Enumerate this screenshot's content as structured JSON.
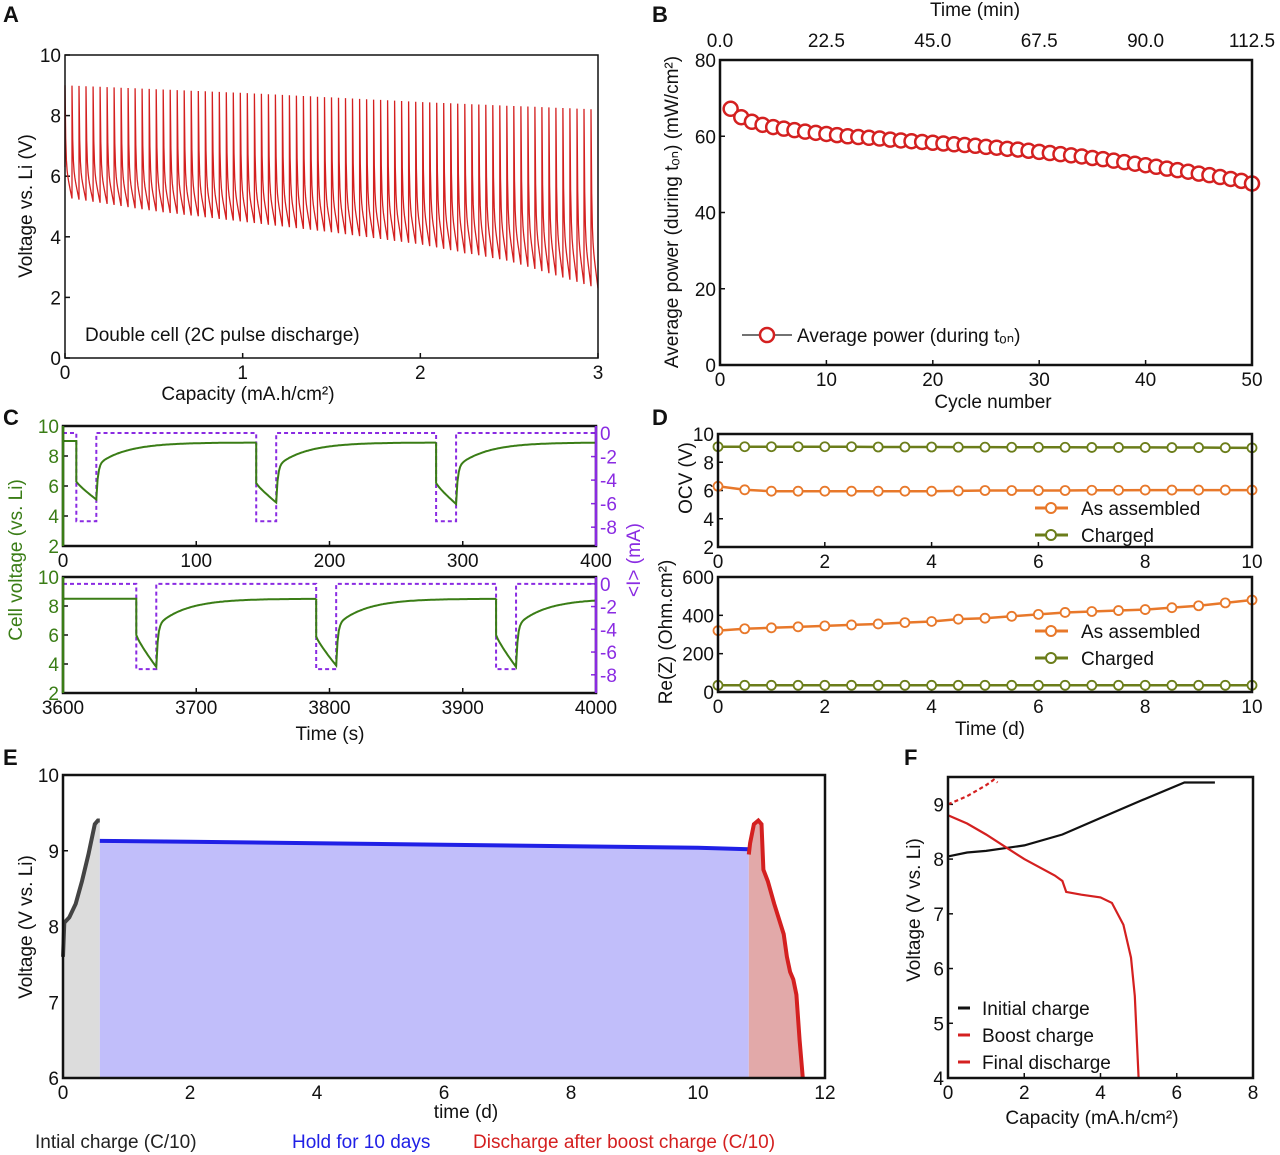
{
  "figure": {
    "panel_labels": [
      "A",
      "B",
      "C",
      "D",
      "E",
      "F"
    ]
  },
  "colors": {
    "red": "#d42020",
    "green": "#3a7d16",
    "purple": "#8a2be2",
    "orange": "#e8782a",
    "olive": "#6b7d1a",
    "blue": "#2020e6",
    "blue_fill": "#c1befa",
    "gray_fill": "#dcdcdc",
    "dark": "#444444",
    "red_fill": "#e2a9a9"
  },
  "chart_data": [
    {
      "id": "A",
      "type": "line",
      "xlabel": "Capacity (mA.h/cm²)",
      "ylabel": "Voltage vs. Li (V)",
      "xlim": [
        0,
        3
      ],
      "ylim": [
        0,
        10
      ],
      "xticks": [
        0,
        1,
        2,
        3
      ],
      "yticks": [
        0,
        2,
        4,
        6,
        8,
        10
      ],
      "annotation": "Double cell (2C pulse discharge)",
      "pulse_train": {
        "pulses": 76,
        "first_trough": 6.3,
        "peak_voltage": [
          [
            0,
            9.0
          ],
          [
            1,
            8.75
          ],
          [
            2,
            8.45
          ],
          [
            3,
            8.2
          ]
        ],
        "min_voltage": [
          [
            0,
            5.3
          ],
          [
            0.5,
            4.85
          ],
          [
            1,
            4.5
          ],
          [
            1.5,
            4.15
          ],
          [
            2,
            3.75
          ],
          [
            2.5,
            3.2
          ],
          [
            3,
            2.3
          ]
        ]
      }
    },
    {
      "id": "B",
      "type": "scatter",
      "xlabel": "Cycle number",
      "ylabel": "Average power (during tₒₙ) (mW/cm²)",
      "x2label": "Time (min)",
      "xlim": [
        0,
        50
      ],
      "ylim": [
        0,
        80
      ],
      "xticks": [
        0,
        10,
        20,
        30,
        40,
        50
      ],
      "yticks": [
        0,
        20,
        40,
        60,
        80
      ],
      "x2lim": [
        0,
        112.5
      ],
      "x2ticks": [
        "0.0",
        "22.5",
        "45.0",
        "67.5",
        "90.0",
        "112.5"
      ],
      "legend": "Average power (during tₒₙ)",
      "legend_position": "bottom-left",
      "series": [
        {
          "name": "Average power (during tₒₙ)",
          "x_start": 1,
          "values": [
            67.2,
            65.0,
            63.8,
            63.0,
            62.4,
            62.0,
            61.6,
            61.2,
            60.9,
            60.6,
            60.3,
            60.0,
            59.8,
            59.6,
            59.4,
            59.1,
            58.9,
            58.7,
            58.5,
            58.3,
            58.1,
            57.9,
            57.7,
            57.5,
            57.2,
            57.0,
            56.7,
            56.5,
            56.2,
            55.9,
            55.6,
            55.3,
            55.0,
            54.7,
            54.3,
            54.0,
            53.6,
            53.2,
            52.8,
            52.4,
            52.0,
            51.5,
            51.1,
            50.7,
            50.2,
            49.8,
            49.3,
            48.8,
            48.3,
            47.6
          ]
        }
      ]
    },
    {
      "id": "C1",
      "type": "line",
      "ylabel": "Cell voltage (vs. Li)",
      "y2label": "<I> (mA)",
      "xlim": [
        0,
        400
      ],
      "ylim": [
        2,
        10
      ],
      "xticks": [
        0,
        100,
        200,
        300,
        400
      ],
      "yticks": [
        2,
        4,
        6,
        8,
        10
      ],
      "y2lim": [
        -9.6,
        0.6
      ],
      "y2ticks": [
        0,
        -2,
        -4,
        -6,
        -8
      ],
      "rest_voltage": 8.9,
      "initial_voltage": 9.0,
      "current_on": -7.5,
      "current_off": 0,
      "pulses": [
        {
          "on": 10,
          "off": 25,
          "v_start": 6.3,
          "v_end": 5.1
        },
        {
          "on": 145,
          "off": 160,
          "v_start": 6.2,
          "v_end": 4.9
        },
        {
          "on": 280,
          "off": 295,
          "v_start": 6.2,
          "v_end": 4.8
        }
      ]
    },
    {
      "id": "C2",
      "type": "line",
      "xlabel": "Time (s)",
      "xlim": [
        3600,
        4000
      ],
      "ylim": [
        2,
        10
      ],
      "xticks": [
        3600,
        3700,
        3800,
        3900,
        4000
      ],
      "yticks": [
        2,
        4,
        6,
        8,
        10
      ],
      "y2lim": [
        -9.6,
        0.6
      ],
      "y2ticks": [
        0,
        -2,
        -4,
        -6,
        -8
      ],
      "rest_voltage": 8.5,
      "initial_voltage": 8.5,
      "current_on": -7.5,
      "current_off": 0,
      "pulses": [
        {
          "on": 3655,
          "off": 3670,
          "v_start": 6.0,
          "v_end": 3.8
        },
        {
          "on": 3790,
          "off": 3805,
          "v_start": 5.9,
          "v_end": 3.9
        },
        {
          "on": 3925,
          "off": 3940,
          "v_start": 6.0,
          "v_end": 3.8
        }
      ]
    },
    {
      "id": "D1",
      "type": "scatter",
      "ylabel": "OCV (V)",
      "xlim": [
        0,
        10
      ],
      "ylim": [
        2,
        10
      ],
      "xticks": [
        0,
        2,
        4,
        6,
        8,
        10
      ],
      "yticks": [
        2,
        4,
        6,
        8,
        10
      ],
      "legend_position": "bottom-right",
      "x_step": 0.5,
      "series": [
        {
          "name": "As assembled",
          "values": [
            6.3,
            6.05,
            5.95,
            5.95,
            5.95,
            5.95,
            5.95,
            5.95,
            5.95,
            5.97,
            6.0,
            6.0,
            6.0,
            6.0,
            6.02,
            6.02,
            6.03,
            6.03,
            6.03,
            6.03,
            6.03
          ]
        },
        {
          "name": "Charged",
          "values": [
            9.1,
            9.1,
            9.1,
            9.1,
            9.1,
            9.1,
            9.08,
            9.08,
            9.08,
            9.07,
            9.07,
            9.06,
            9.06,
            9.06,
            9.05,
            9.05,
            9.05,
            9.04,
            9.04,
            9.03,
            9.02
          ]
        }
      ]
    },
    {
      "id": "D2",
      "type": "scatter",
      "xlabel": "Time (d)",
      "ylabel": "Re(Z) (Ohm.cm²)",
      "xlim": [
        0,
        10
      ],
      "ylim": [
        0,
        600
      ],
      "xticks": [
        0,
        2,
        4,
        6,
        8,
        10
      ],
      "yticks": [
        0,
        200,
        400,
        600
      ],
      "legend_position": "center-right",
      "x_step": 0.5,
      "series": [
        {
          "name": "As assembled",
          "values": [
            320,
            330,
            335,
            340,
            345,
            350,
            355,
            362,
            368,
            380,
            385,
            395,
            405,
            415,
            420,
            425,
            430,
            440,
            450,
            465,
            480
          ]
        },
        {
          "name": "Charged",
          "values": [
            35,
            35,
            35,
            35,
            35,
            35,
            35,
            35,
            35,
            35,
            35,
            35,
            35,
            35,
            35,
            35,
            35,
            35,
            35,
            35,
            35
          ]
        }
      ]
    },
    {
      "id": "E",
      "type": "area",
      "xlabel": "time (d)",
      "ylabel": "Voltage (V vs. Li)",
      "xlim": [
        0,
        12
      ],
      "ylim": [
        6,
        10
      ],
      "xticks": [
        0,
        2,
        4,
        6,
        8,
        10,
        12
      ],
      "yticks": [
        6,
        7,
        8,
        9,
        10
      ],
      "series": [
        {
          "name": "Intial charge (C/10)",
          "points": [
            [
              0,
              7.6
            ],
            [
              0.02,
              8.05
            ],
            [
              0.1,
              8.12
            ],
            [
              0.2,
              8.3
            ],
            [
              0.3,
              8.6
            ],
            [
              0.4,
              8.95
            ],
            [
              0.5,
              9.35
            ],
            [
              0.55,
              9.4
            ],
            [
              0.58,
              9.4
            ]
          ]
        },
        {
          "name": "Hold for 10 days",
          "points": [
            [
              0.58,
              9.13
            ],
            [
              2,
              9.12
            ],
            [
              4,
              9.1
            ],
            [
              6,
              9.08
            ],
            [
              8,
              9.06
            ],
            [
              10,
              9.04
            ],
            [
              10.8,
              9.02
            ]
          ]
        },
        {
          "name": "Discharge after boost charge (C/10)",
          "points": [
            [
              10.8,
              8.95
            ],
            [
              10.82,
              9.1
            ],
            [
              10.88,
              9.35
            ],
            [
              10.95,
              9.4
            ],
            [
              11.0,
              9.35
            ],
            [
              11.03,
              8.75
            ],
            [
              11.1,
              8.6
            ],
            [
              11.2,
              8.3
            ],
            [
              11.35,
              7.9
            ],
            [
              11.4,
              7.6
            ],
            [
              11.45,
              7.4
            ],
            [
              11.5,
              7.3
            ],
            [
              11.55,
              7.1
            ],
            [
              11.6,
              6.5
            ],
            [
              11.65,
              6.0
            ]
          ]
        }
      ]
    },
    {
      "id": "F",
      "type": "line",
      "xlabel": "Capacity (mA.h/cm²)",
      "ylabel": "Voltage (V vs. Li)",
      "xlim": [
        0,
        8
      ],
      "ylim": [
        4,
        9.5
      ],
      "xticks": [
        0,
        2,
        4,
        6,
        8
      ],
      "yticks": [
        4,
        5,
        6,
        7,
        8,
        9
      ],
      "legend_position": "bottom-left",
      "series": [
        {
          "name": "Initial charge",
          "points": [
            [
              0,
              8.05
            ],
            [
              0.5,
              8.12
            ],
            [
              1,
              8.15
            ],
            [
              2,
              8.25
            ],
            [
              3,
              8.45
            ],
            [
              4,
              8.75
            ],
            [
              5,
              9.05
            ],
            [
              6.2,
              9.4
            ],
            [
              7,
              9.4
            ]
          ]
        },
        {
          "name": "Boost charge",
          "points": [
            [
              0,
              9.0
            ],
            [
              0.5,
              9.15
            ],
            [
              1,
              9.35
            ],
            [
              1.2,
              9.45
            ],
            [
              1.3,
              9.4
            ]
          ]
        },
        {
          "name": "Final discharge",
          "points": [
            [
              0,
              8.8
            ],
            [
              0.5,
              8.65
            ],
            [
              1,
              8.45
            ],
            [
              2,
              8.0
            ],
            [
              2.8,
              7.7
            ],
            [
              3,
              7.6
            ],
            [
              3.1,
              7.4
            ],
            [
              3.5,
              7.35
            ],
            [
              4,
              7.3
            ],
            [
              4.3,
              7.2
            ],
            [
              4.6,
              6.8
            ],
            [
              4.8,
              6.2
            ],
            [
              4.9,
              5.5
            ],
            [
              5.0,
              4.0
            ]
          ]
        }
      ]
    }
  ]
}
